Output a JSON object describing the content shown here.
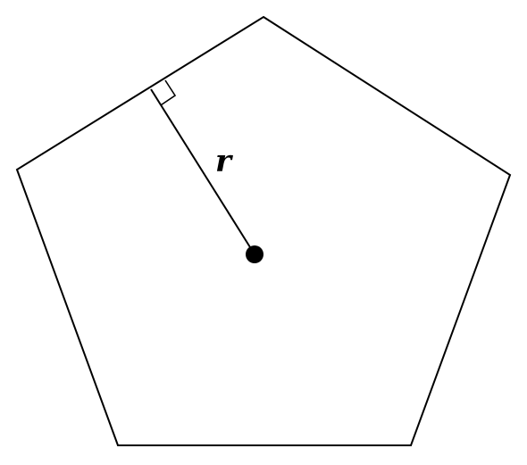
{
  "diagram": {
    "shape": "regular pentagon",
    "apothem_label": "r",
    "marks": {
      "right_angle": true,
      "center_point": true
    },
    "colors": {
      "stroke": "#000000",
      "background": "#ffffff"
    }
  }
}
